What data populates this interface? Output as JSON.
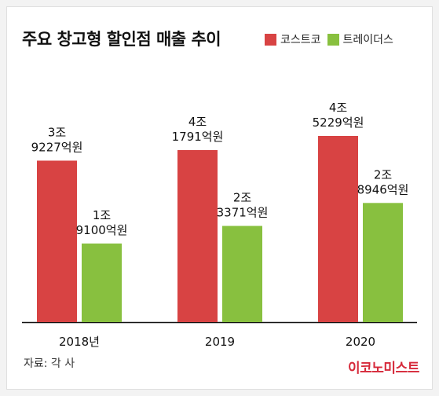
{
  "title": "주요 창고형 할인점 매출 추이",
  "source": "자료: 각 사",
  "brand": "이코노미스트",
  "colors": {
    "costco": "#d84343",
    "traders": "#88c03f"
  },
  "chart_data": {
    "type": "bar",
    "categories": [
      "2018년",
      "2019",
      "2020"
    ],
    "series": [
      {
        "name": "코스트코",
        "values": [
          39227,
          41791,
          45229
        ],
        "labels": [
          [
            "3조",
            "9227억원"
          ],
          [
            "4조",
            "1791억원"
          ],
          [
            "4조",
            "5229억원"
          ]
        ]
      },
      {
        "name": "트레이더스",
        "values": [
          19100,
          23371,
          28946
        ],
        "labels": [
          [
            "1조",
            "9100억원"
          ],
          [
            "2조",
            "3371억원"
          ],
          [
            "2조",
            "8946억원"
          ]
        ]
      }
    ]
  }
}
